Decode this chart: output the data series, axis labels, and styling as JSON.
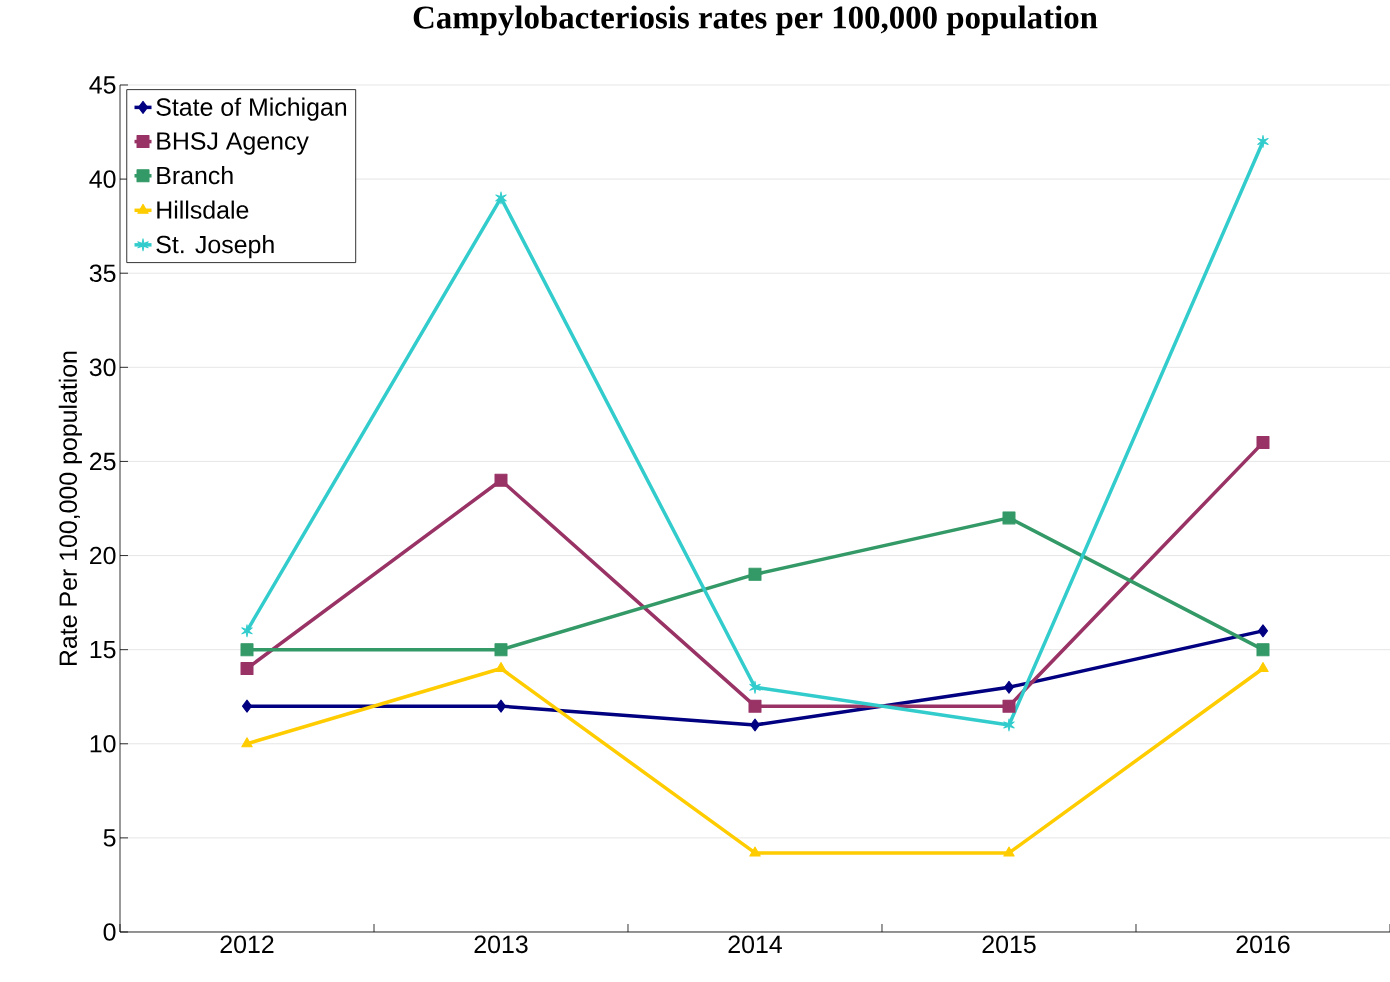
{
  "chart_data": {
    "type": "line",
    "title": "Campylobacteriosis rates per 100,000 population",
    "ylabel": "Rate Per 100,000 population",
    "categories": [
      "2012",
      "2013",
      "2014",
      "2015",
      "2016"
    ],
    "series": [
      {
        "name": "State of Michigan",
        "color": "#000080",
        "marker": "diamond",
        "values": [
          12,
          12,
          11,
          13,
          16
        ]
      },
      {
        "name": "BHSJ Agency",
        "color": "#993366",
        "marker": "square",
        "values": [
          14,
          24,
          12,
          12,
          26
        ]
      },
      {
        "name": "Branch",
        "color": "#339966",
        "marker": "square",
        "values": [
          15,
          15,
          19,
          22,
          15
        ]
      },
      {
        "name": "Hillsdale",
        "color": "#ffcc00",
        "marker": "triangle",
        "values": [
          10,
          14,
          4.2,
          4.2,
          14
        ]
      },
      {
        "name": "St. Joseph",
        "color": "#33cccc",
        "marker": "cross",
        "values": [
          16,
          39,
          13,
          11,
          42
        ]
      }
    ],
    "ylim": [
      0,
      45
    ],
    "yticks": [
      0,
      5,
      10,
      15,
      20,
      25,
      30,
      35,
      40,
      45
    ],
    "grid": "y",
    "legend": "top left",
    "line_style": "solid"
  }
}
